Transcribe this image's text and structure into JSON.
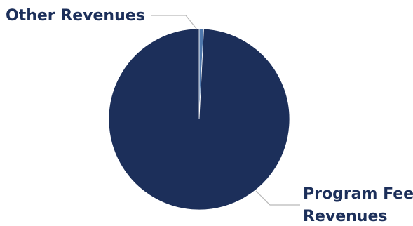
{
  "chart_data": {
    "type": "pie",
    "title": "",
    "slices": [
      {
        "label": "Other Revenues",
        "value": 0.8,
        "color": "#4f78ac"
      },
      {
        "label": "Program Fee Revenues",
        "value": 99.2,
        "color": "#1c2f5a"
      }
    ],
    "labels": {
      "other": "Other Revenues",
      "program_line1": "Program Fee",
      "program_line2": "Revenues"
    },
    "legend": "none"
  }
}
